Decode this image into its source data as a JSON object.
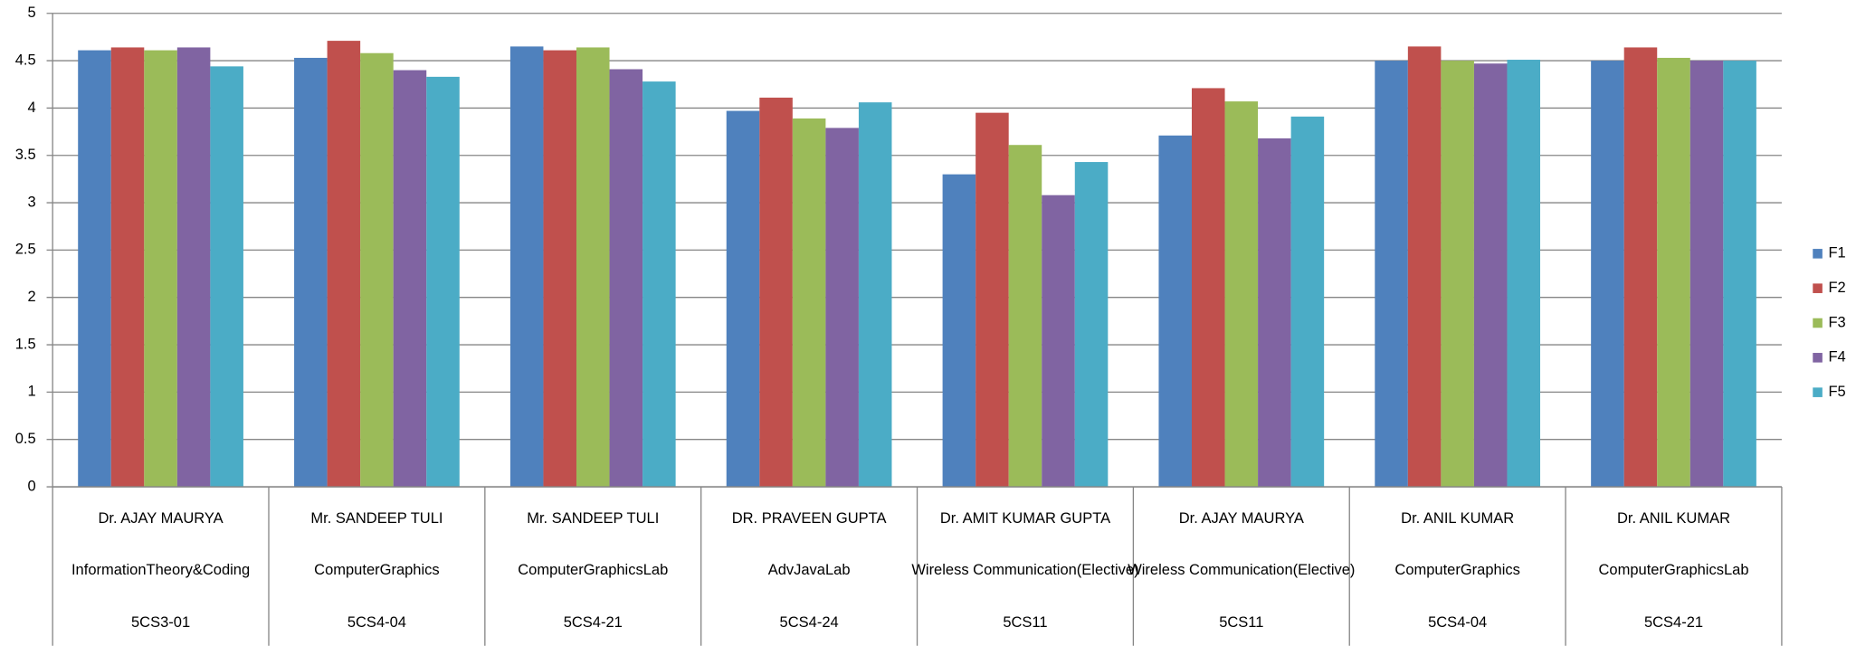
{
  "chart_data": {
    "type": "bar",
    "categories": [
      [
        "Dr. AJAY MAURYA",
        "InformationTheory&Coding",
        "5CS3-01"
      ],
      [
        "Mr. SANDEEP  TULI",
        "ComputerGraphics",
        "5CS4-04"
      ],
      [
        "Mr. SANDEEP  TULI",
        "ComputerGraphicsLab",
        "5CS4-21"
      ],
      [
        "DR. PRAVEEN  GUPTA",
        "AdvJavaLab",
        "5CS4-24"
      ],
      [
        "Dr. AMIT KUMAR GUPTA",
        "Wireless Communication(Elective)",
        "5CS11"
      ],
      [
        "Dr. AJAY MAURYA",
        "Wireless Communication(Elective)",
        "5CS11"
      ],
      [
        "Dr. ANIL KUMAR",
        "ComputerGraphics",
        "5CS4-04"
      ],
      [
        "Dr. ANIL KUMAR",
        "ComputerGraphicsLab",
        "5CS4-21"
      ]
    ],
    "series": [
      {
        "name": "F1",
        "color": "#4F81BD",
        "values": [
          4.61,
          4.53,
          4.65,
          3.97,
          3.3,
          3.71,
          4.5,
          4.5
        ]
      },
      {
        "name": "F2",
        "color": "#C0504D",
        "values": [
          4.64,
          4.71,
          4.61,
          4.11,
          3.95,
          4.21,
          4.65,
          4.64
        ]
      },
      {
        "name": "F3",
        "color": "#9BBB59",
        "values": [
          4.61,
          4.58,
          4.64,
          3.89,
          3.61,
          4.07,
          4.5,
          4.53
        ]
      },
      {
        "name": "F4",
        "color": "#8064A2",
        "values": [
          4.64,
          4.4,
          4.41,
          3.79,
          3.08,
          3.68,
          4.47,
          4.5
        ]
      },
      {
        "name": "F5",
        "color": "#4BACC6",
        "values": [
          4.44,
          4.33,
          4.28,
          4.06,
          3.43,
          3.91,
          4.51,
          4.5
        ]
      }
    ],
    "ylim": [
      0,
      5
    ],
    "yticks": [
      0,
      0.5,
      1,
      1.5,
      2,
      2.5,
      3,
      3.5,
      4,
      4.5,
      5
    ],
    "grid": true,
    "legend": "right"
  }
}
